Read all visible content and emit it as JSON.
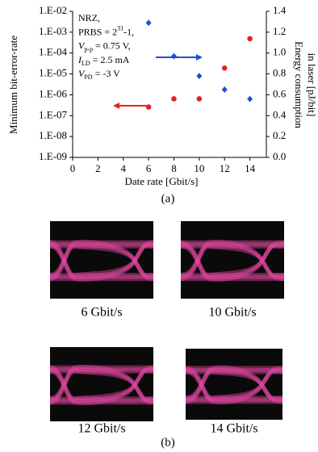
{
  "chart_data": {
    "type": "scatter",
    "xlabel": "Date rate [Gbit/s]",
    "ylabel": "Minimum bit-error-rate",
    "y2label": [
      "Energy consumption",
      "in laser [pJ/bit]"
    ],
    "caption": "(a)",
    "annotation": [
      [
        "NRZ,"
      ],
      [
        "PRBS = 2",
        "31",
        "-1,"
      ],
      [
        "V",
        "p-p",
        " = 0.75 V,"
      ],
      [
        "I",
        "LD",
        " = 2.5 mA"
      ],
      [
        "V",
        "PD",
        " = -3 V"
      ]
    ],
    "x": [
      6,
      8,
      10,
      12,
      14
    ],
    "xlim": [
      0,
      15.3
    ],
    "xticks": [
      0,
      2,
      4,
      6,
      8,
      10,
      12,
      14
    ],
    "ylog": true,
    "ylim": [
      1e-09,
      0.01
    ],
    "yticks": [
      {
        "value": 1e-09,
        "label": "1.E-09"
      },
      {
        "value": 1e-08,
        "label": "1.E-08"
      },
      {
        "value": 1e-07,
        "label": "1.E-07"
      },
      {
        "value": 1e-06,
        "label": "1.E-06"
      },
      {
        "value": 1e-05,
        "label": "1.E-05"
      },
      {
        "value": 0.0001,
        "label": "1.E-04"
      },
      {
        "value": 0.001,
        "label": "1.E-03"
      },
      {
        "value": 0.01,
        "label": "1.E-02"
      }
    ],
    "y2lim": [
      0,
      1.4
    ],
    "y2ticks": [
      {
        "value": 0,
        "label": "0.0"
      },
      {
        "value": 0.2,
        "label": "0.2"
      },
      {
        "value": 0.4,
        "label": "0.4"
      },
      {
        "value": 0.6,
        "label": "0.6"
      },
      {
        "value": 0.8,
        "label": "0.8"
      },
      {
        "value": 1.0,
        "label": "1.0"
      },
      {
        "value": 1.2,
        "label": "1.2"
      },
      {
        "value": 1.4,
        "label": "1.4"
      }
    ],
    "series": [
      {
        "color": "#e8211f",
        "marker": "circle",
        "values": [
          2.6e-07,
          6.4e-07,
          6.4e-07,
          1.9e-05,
          0.00049
        ]
      },
      {
        "color": "#1f4fd8",
        "marker": "diamond",
        "axis": "y2",
        "values": [
          1.29,
          0.97,
          0.78,
          0.65,
          0.56
        ]
      }
    ]
  },
  "eye_diagrams": {
    "panels": [
      "6 Gbit/s",
      "10 Gbit/s",
      "12 Gbit/s",
      "14 Gbit/s"
    ],
    "caption": "(b)"
  }
}
